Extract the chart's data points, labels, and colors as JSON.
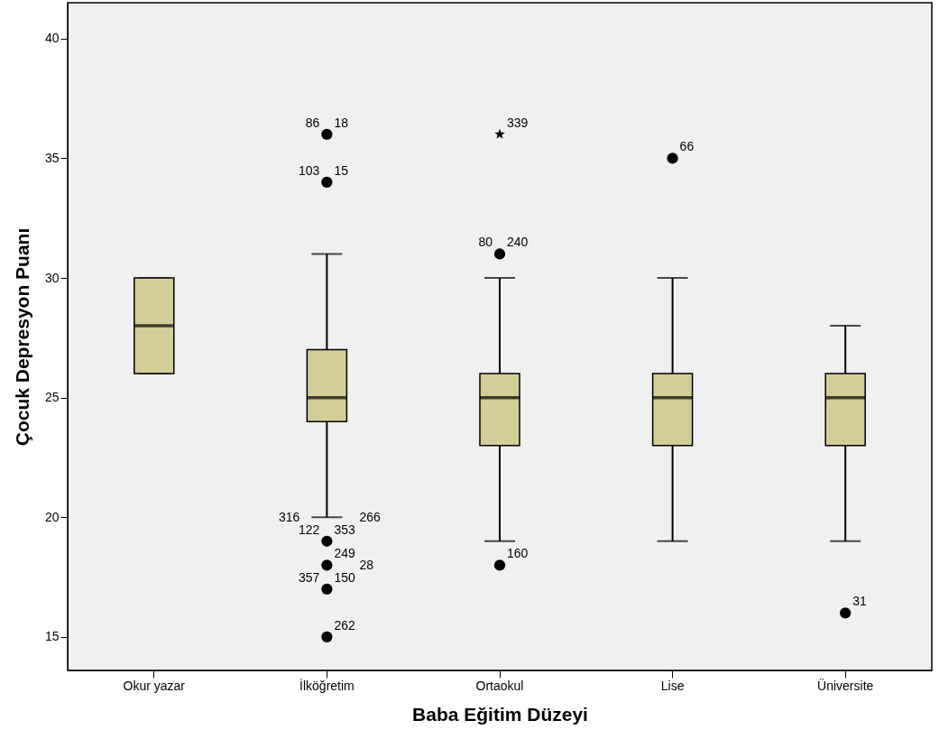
{
  "chart_data": {
    "type": "box",
    "xlabel": "Baba Eğitim Düzeyi",
    "ylabel": "Çocuk Depresyon Puanı",
    "categories": [
      "Okur yazar",
      "İlköğretim",
      "Ortaokul",
      "Lise",
      "Üniversite"
    ],
    "color": "#d3ce97",
    "grid": false,
    "ylim": [
      13.6,
      41.5
    ],
    "yticks": [
      15,
      20,
      25,
      30,
      35,
      40
    ],
    "boxes": [
      {
        "low": 26,
        "q1": 26,
        "median": 28,
        "q3": 30,
        "high": 30
      },
      {
        "low": 20,
        "q1": 24,
        "median": 25,
        "q3": 27,
        "high": 31
      },
      {
        "low": 19,
        "q1": 23,
        "median": 25,
        "q3": 26,
        "high": 30
      },
      {
        "low": 19,
        "q1": 23,
        "median": 25,
        "q3": 26,
        "high": 30
      },
      {
        "low": 19,
        "q1": 23,
        "median": 25,
        "q3": 26,
        "high": 28
      }
    ],
    "series": [
      {
        "type": "scatter",
        "marker": "circle",
        "color": "#000000",
        "x": [
          "İlköğretim",
          "İlköğretim",
          "İlköğretim",
          "İlköğretim",
          "İlköğretim",
          "İlköğretim",
          "Ortaokul",
          "Ortaokul",
          "Lise",
          "Üniversite"
        ],
        "values": [
          36,
          34,
          19,
          18,
          17,
          15,
          31,
          18,
          35,
          16
        ]
      },
      {
        "type": "scatter",
        "marker": "star",
        "color": "#000000",
        "x": [
          "Ortaokul"
        ],
        "values": [
          36
        ]
      }
    ],
    "annotations": [
      {
        "text": "18",
        "x": "İlköğretim",
        "y": 36
      },
      {
        "text": "86",
        "x": "İlköğretim",
        "y": 36
      },
      {
        "text": "15",
        "x": "İlköğretim",
        "y": 34
      },
      {
        "text": "103",
        "x": "İlköğretim",
        "y": 34
      },
      {
        "text": "353",
        "x": "İlköğretim",
        "y": 19
      },
      {
        "text": "122",
        "x": "İlköğretim",
        "y": 19
      },
      {
        "text": "266",
        "x": "İlköğretim",
        "y": 19
      },
      {
        "text": "316",
        "x": "İlköğretim",
        "y": 19
      },
      {
        "text": "249",
        "x": "İlköğretim",
        "y": 18
      },
      {
        "text": "150",
        "x": "İlköğretim",
        "y": 17
      },
      {
        "text": "357",
        "x": "İlköğretim",
        "y": 17
      },
      {
        "text": "28",
        "x": "İlköğretim",
        "y": 17
      },
      {
        "text": "262",
        "x": "İlköğretim",
        "y": 15
      },
      {
        "text": "339",
        "x": "Ortaokul",
        "y": 36
      },
      {
        "text": "240",
        "x": "Ortaokul",
        "y": 31
      },
      {
        "text": "80",
        "x": "Ortaokul",
        "y": 31
      },
      {
        "text": "160",
        "x": "Ortaokul",
        "y": 18
      },
      {
        "text": "66",
        "x": "Lise",
        "y": 35
      },
      {
        "text": "31",
        "x": "Üniversite",
        "y": 16
      }
    ]
  }
}
